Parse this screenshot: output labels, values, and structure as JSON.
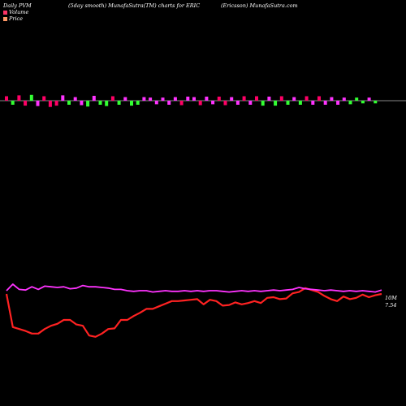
{
  "header": {
    "left": "Daily PVM",
    "center": "(5day smooth) MunafaSutra(TM) charts for ERIC",
    "right": "(Ericsson) MunafaSutra.com"
  },
  "legend": [
    {
      "label": "Volume",
      "color": "#ff3366"
    },
    {
      "label": "Price",
      "color": "#ff9966"
    }
  ],
  "colors": {
    "up": "#33ff33",
    "down": "#ff0066",
    "neutral": "#ff33ff",
    "volume_line": "#ff33ff",
    "price_line": "#ff2222"
  },
  "chart_data": {
    "type": "line",
    "volume_bars": [
      {
        "v": 10,
        "d": "up",
        "c": "down"
      },
      {
        "v": 9,
        "d": "dn",
        "c": "up"
      },
      {
        "v": 12,
        "d": "up",
        "c": "down"
      },
      {
        "v": 11,
        "d": "dn",
        "c": "down"
      },
      {
        "v": 13,
        "d": "up",
        "c": "up"
      },
      {
        "v": 12,
        "d": "dn",
        "c": "neutral"
      },
      {
        "v": 10,
        "d": "up",
        "c": "down"
      },
      {
        "v": 14,
        "d": "dn",
        "c": "down"
      },
      {
        "v": 11,
        "d": "dn",
        "c": "down"
      },
      {
        "v": 12,
        "d": "up",
        "c": "neutral"
      },
      {
        "v": 9,
        "d": "dn",
        "c": "up"
      },
      {
        "v": 8,
        "d": "up",
        "c": "neutral"
      },
      {
        "v": 10,
        "d": "dn",
        "c": "neutral"
      },
      {
        "v": 13,
        "d": "dn",
        "c": "up"
      },
      {
        "v": 11,
        "d": "up",
        "c": "neutral"
      },
      {
        "v": 9,
        "d": "dn",
        "c": "up"
      },
      {
        "v": 12,
        "d": "dn",
        "c": "up"
      },
      {
        "v": 10,
        "d": "up",
        "c": "down"
      },
      {
        "v": 9,
        "d": "dn",
        "c": "up"
      },
      {
        "v": 8,
        "d": "up",
        "c": "neutral"
      },
      {
        "v": 11,
        "d": "dn",
        "c": "up"
      },
      {
        "v": 9,
        "d": "dn",
        "c": "up"
      },
      {
        "v": 8,
        "d": "up",
        "c": "neutral"
      },
      {
        "v": 7,
        "d": "up",
        "c": "neutral"
      },
      {
        "v": 8,
        "d": "dn",
        "c": "neutral"
      },
      {
        "v": 7,
        "d": "up",
        "c": "neutral"
      },
      {
        "v": 9,
        "d": "dn",
        "c": "neutral"
      },
      {
        "v": 8,
        "d": "up",
        "c": "neutral"
      },
      {
        "v": 10,
        "d": "dn",
        "c": "down"
      },
      {
        "v": 9,
        "d": "up",
        "c": "neutral"
      },
      {
        "v": 8,
        "d": "up",
        "c": "neutral"
      },
      {
        "v": 10,
        "d": "dn",
        "c": "down"
      },
      {
        "v": 9,
        "d": "up",
        "c": "neutral"
      },
      {
        "v": 8,
        "d": "dn",
        "c": "neutral"
      },
      {
        "v": 9,
        "d": "up",
        "c": "down"
      },
      {
        "v": 10,
        "d": "dn",
        "c": "down"
      },
      {
        "v": 8,
        "d": "up",
        "c": "neutral"
      },
      {
        "v": 9,
        "d": "dn",
        "c": "neutral"
      },
      {
        "v": 10,
        "d": "up",
        "c": "down"
      },
      {
        "v": 9,
        "d": "dn",
        "c": "neutral"
      },
      {
        "v": 10,
        "d": "up",
        "c": "down"
      },
      {
        "v": 11,
        "d": "dn",
        "c": "up"
      },
      {
        "v": 9,
        "d": "up",
        "c": "neutral"
      },
      {
        "v": 11,
        "d": "dn",
        "c": "up"
      },
      {
        "v": 10,
        "d": "up",
        "c": "down"
      },
      {
        "v": 9,
        "d": "dn",
        "c": "up"
      },
      {
        "v": 8,
        "d": "up",
        "c": "neutral"
      },
      {
        "v": 9,
        "d": "dn",
        "c": "up"
      },
      {
        "v": 10,
        "d": "up",
        "c": "down"
      },
      {
        "v": 9,
        "d": "dn",
        "c": "neutral"
      },
      {
        "v": 10,
        "d": "up",
        "c": "down"
      },
      {
        "v": 9,
        "d": "dn",
        "c": "neutral"
      },
      {
        "v": 8,
        "d": "up",
        "c": "neutral"
      },
      {
        "v": 9,
        "d": "dn",
        "c": "neutral"
      },
      {
        "v": 7,
        "d": "up",
        "c": "neutral"
      },
      {
        "v": 8,
        "d": "dn",
        "c": "up"
      },
      {
        "v": 7,
        "d": "up",
        "c": "up"
      },
      {
        "v": 6,
        "d": "dn",
        "c": "up"
      },
      {
        "v": 7,
        "d": "up",
        "c": "neutral"
      },
      {
        "v": 6,
        "d": "dn",
        "c": "up"
      }
    ],
    "volume_line": [
      90,
      100,
      92,
      91,
      96,
      92,
      97,
      96,
      95,
      96,
      93,
      94,
      98,
      96,
      96,
      95,
      94,
      92,
      92,
      90,
      89,
      90,
      90,
      88,
      89,
      90,
      89,
      89,
      90,
      89,
      90,
      89,
      90,
      90,
      89,
      88,
      89,
      90,
      89,
      90,
      89,
      90,
      91,
      90,
      91,
      92,
      95,
      93,
      92,
      91,
      90,
      91,
      90,
      89,
      90,
      89,
      90,
      89,
      88,
      91
    ],
    "price_line": [
      85,
      34,
      31,
      28,
      24,
      24,
      31,
      36,
      39,
      45,
      45,
      38,
      36,
      21,
      19,
      24,
      31,
      32,
      45,
      45,
      51,
      56,
      62,
      62,
      66,
      70,
      74,
      74,
      75,
      76,
      77,
      69,
      76,
      74,
      67,
      68,
      72,
      69,
      71,
      74,
      71,
      79,
      80,
      77,
      78,
      86,
      88,
      94,
      91,
      88,
      82,
      77,
      74,
      81,
      77,
      79,
      84,
      80,
      83,
      85
    ],
    "end_labels": {
      "volume": "10M",
      "price": "7.54"
    }
  }
}
